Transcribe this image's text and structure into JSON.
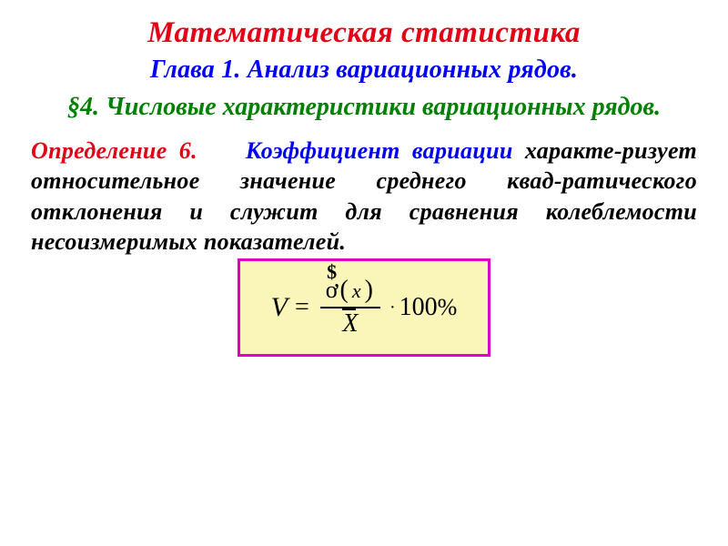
{
  "title": "Математическая статистика",
  "chapter": "Глава 1. Анализ вариационных рядов.",
  "section": "§4.  Числовые характеристики вариационных рядов.",
  "definition_label": "Определение 6.",
  "term": "Коэффициент вариации",
  "body_rest": " характе-ризует относительное значение среднего квад-ратического отклонения и служит для сравнения колеблемости несоизмеримых показателей.",
  "formula": {
    "lhs": "V",
    "eq": "=",
    "hat": "$",
    "sigma": "ơ",
    "paren_l": "(",
    "var": "x",
    "paren_r": ")",
    "den": "X",
    "dot": "·",
    "hundred": "100",
    "percent": "%"
  },
  "colors": {
    "title": "#e30016",
    "chapter": "#0000f5",
    "section": "#008000",
    "def_label": "#e30016",
    "term": "#0000f5",
    "body": "#000000",
    "formula_border": "#dd00c8",
    "formula_bg": "#faf5b9"
  },
  "fonts": {
    "title_size": 33,
    "chapter_size": 28,
    "section_size": 28,
    "body_size": 26,
    "formula_size": 28
  }
}
